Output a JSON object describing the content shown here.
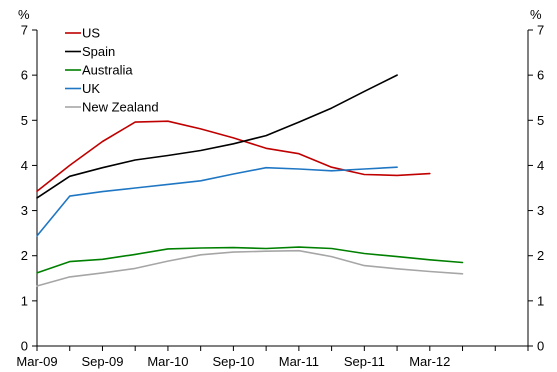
{
  "chart_data": {
    "type": "line",
    "title": "",
    "xlabel": "",
    "ylabel": "",
    "y_unit_left": "%",
    "y_unit_right": "%",
    "ylim": [
      0,
      7
    ],
    "y_ticks": [
      0,
      1,
      2,
      3,
      4,
      5,
      6,
      7
    ],
    "y_tick_labels": [
      "0",
      "1",
      "2",
      "3",
      "4",
      "5",
      "6",
      "7"
    ],
    "xlim": [
      "Mar-09",
      "Dec-12"
    ],
    "x": [
      "Mar-09",
      "Jun-09",
      "Sep-09",
      "Dec-09",
      "Mar-10",
      "Jun-10",
      "Sep-10",
      "Dec-10",
      "Mar-11",
      "Jun-11",
      "Sep-11",
      "Dec-11",
      "Mar-12",
      "Jun-12",
      "Sep-12",
      "Dec-12"
    ],
    "x_tick_labels": [
      "Mar-09",
      "Sep-09",
      "Mar-10",
      "Sep-10",
      "Mar-11",
      "Sep-11",
      "Mar-12"
    ],
    "grid": false,
    "legend_position": "top-left",
    "series": [
      {
        "name": "US",
        "color": "#c00000",
        "values": [
          3.43,
          4.0,
          4.53,
          4.96,
          4.98,
          4.81,
          4.61,
          4.38,
          4.26,
          3.96,
          3.8,
          3.78,
          3.82,
          null,
          null,
          null
        ]
      },
      {
        "name": "Spain",
        "color": "#000000",
        "values": [
          3.28,
          3.76,
          3.95,
          4.12,
          4.22,
          4.33,
          4.48,
          4.66,
          4.96,
          5.27,
          5.64,
          6.0,
          null,
          null,
          null,
          null
        ]
      },
      {
        "name": "Australia",
        "color": "#008000",
        "values": [
          1.62,
          1.87,
          1.92,
          2.03,
          2.15,
          2.17,
          2.18,
          2.16,
          2.19,
          2.16,
          2.05,
          1.98,
          1.91,
          1.85,
          null,
          null
        ]
      },
      {
        "name": "UK",
        "color": "#1f77c4",
        "values": [
          2.44,
          3.32,
          3.42,
          3.5,
          3.58,
          3.66,
          3.81,
          3.95,
          3.92,
          3.88,
          3.92,
          3.96,
          null,
          null,
          null,
          null
        ]
      },
      {
        "name": "New Zealand",
        "color": "#a6a6a6",
        "values": [
          1.33,
          1.53,
          1.62,
          1.72,
          1.88,
          2.02,
          2.08,
          2.1,
          2.11,
          1.98,
          1.78,
          1.71,
          1.65,
          1.6,
          null,
          null
        ]
      }
    ]
  }
}
